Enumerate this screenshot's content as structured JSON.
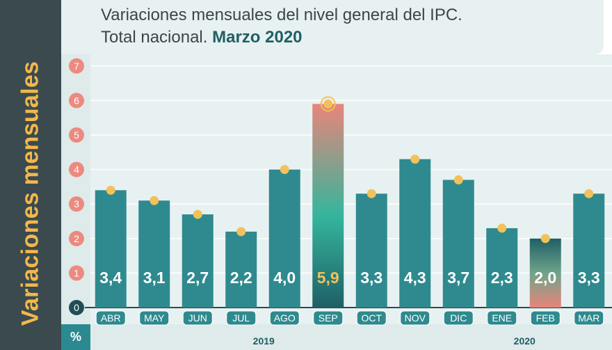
{
  "title": {
    "line1": "Variaciones mensuales del nivel general del IPC.",
    "line2_prefix": "Total nacional.",
    "line2_bold": "Marzo 2020"
  },
  "ylabel": "Variaciones mensuales",
  "unit": "%",
  "colors": {
    "bar": "#2e8a8e",
    "highlight_top": "#e8857a",
    "highlight_bottom": "#2a9a93",
    "dot": "#f2c15a",
    "ytick_circle": "#ec8a80",
    "panel": "#e8f1f1",
    "grid": "#cfdcdc",
    "left_band": "#3b4a4f",
    "ylabel": "#f2b84b"
  },
  "chart_data": {
    "type": "bar",
    "categories": [
      "ABR",
      "MAY",
      "JUN",
      "JUL",
      "AGO",
      "SEP",
      "OCT",
      "NOV",
      "DIC",
      "ENE",
      "FEB",
      "MAR"
    ],
    "values": [
      3.4,
      3.1,
      2.7,
      2.2,
      4.0,
      5.9,
      3.3,
      4.3,
      3.7,
      2.3,
      2.0,
      3.3
    ],
    "value_labels": [
      "3,4",
      "3,1",
      "2,7",
      "2,2",
      "4,0",
      "5,9",
      "3,3",
      "4,3",
      "3,7",
      "2,3",
      "2,0",
      "3,3"
    ],
    "highlighted": [
      "SEP",
      "FEB"
    ],
    "years": [
      {
        "label": "2019",
        "under": "AGO"
      },
      {
        "label": "2020",
        "under": "FEB"
      }
    ],
    "yticks": [
      "0",
      "1",
      "2",
      "3",
      "4",
      "5",
      "6",
      "7"
    ],
    "ylim": [
      0,
      7
    ],
    "grid": true
  }
}
